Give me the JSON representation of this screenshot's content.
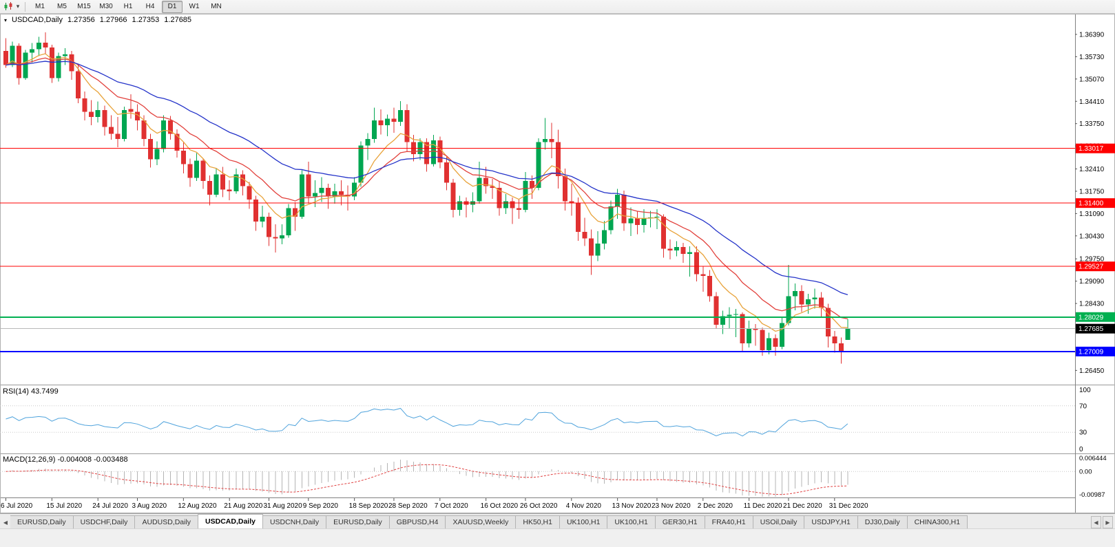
{
  "toolbar": {
    "caret": "▾",
    "timeframes": [
      {
        "label": "M1",
        "active": false
      },
      {
        "label": "M5",
        "active": false
      },
      {
        "label": "M15",
        "active": false
      },
      {
        "label": "M30",
        "active": false
      },
      {
        "label": "H1",
        "active": false
      },
      {
        "label": "H4",
        "active": false
      },
      {
        "label": "D1",
        "active": true
      },
      {
        "label": "W1",
        "active": false
      },
      {
        "label": "MN",
        "active": false
      }
    ]
  },
  "chart": {
    "header": {
      "marker": "▾",
      "symbol": "USDCAD,Daily",
      "open": "1.27356",
      "high": "1.27966",
      "low": "1.27353",
      "close": "1.27685"
    }
  },
  "chart_data": {
    "type": "candlestick",
    "symbol": "USDCAD",
    "timeframe": "Daily",
    "up_color": "#00A651",
    "down_color": "#E03131",
    "price_pane": {
      "ylim": [
        1.2605,
        1.37
      ],
      "axis_ticks": [
        "1.36390",
        "1.35730",
        "1.35070",
        "1.34410",
        "1.33750",
        "1.33090",
        "1.32410",
        "1.31750",
        "1.31090",
        "1.30430",
        "1.29750",
        "1.29090",
        "1.28430",
        "1.26450"
      ],
      "hlines": [
        {
          "value": 1.33017,
          "label": "1.33017",
          "color": "#FF0000",
          "width": 1
        },
        {
          "value": 1.314,
          "label": "1.31400",
          "color": "#FF0000",
          "width": 1
        },
        {
          "value": 1.29527,
          "label": "1.29527",
          "color": "#FF0000",
          "width": 1
        },
        {
          "value": 1.28029,
          "label": "1.28029",
          "color": "#00B050",
          "width": 2
        },
        {
          "value": 1.27009,
          "label": "1.27009",
          "color": "#0000FF",
          "width": 2
        }
      ],
      "current_price": {
        "value": 1.27685,
        "label": "1.27685",
        "line_color": "#B8B8B8",
        "box_color": "#000000"
      },
      "ma": [
        {
          "period": 8,
          "color": "#E8A33B"
        },
        {
          "period": 16,
          "color": "#E2413C"
        },
        {
          "period": 34,
          "color": "#2433C9"
        }
      ],
      "candles": [
        [
          1.359,
          1.3628,
          1.354,
          1.3548
        ],
        [
          1.3548,
          1.3618,
          1.3542,
          1.3605
        ],
        [
          1.3605,
          1.3612,
          1.349,
          1.351
        ],
        [
          1.351,
          1.3593,
          1.3505,
          1.3585
        ],
        [
          1.3585,
          1.3613,
          1.3555,
          1.3595
        ],
        [
          1.3595,
          1.3632,
          1.3575,
          1.3615
        ],
        [
          1.3615,
          1.3645,
          1.358,
          1.36
        ],
        [
          1.36,
          1.3608,
          1.3495,
          1.351
        ],
        [
          1.351,
          1.3585,
          1.35,
          1.3575
        ],
        [
          1.3575,
          1.3598,
          1.3548,
          1.358
        ],
        [
          1.358,
          1.359,
          1.3505,
          1.353
        ],
        [
          1.353,
          1.3548,
          1.3435,
          1.345
        ],
        [
          1.345,
          1.347,
          1.3385,
          1.341
        ],
        [
          1.341,
          1.3445,
          1.337,
          1.3395
        ],
        [
          1.3395,
          1.344,
          1.3378,
          1.3415
        ],
        [
          1.3415,
          1.3428,
          1.334,
          1.3365
        ],
        [
          1.3365,
          1.34,
          1.3328,
          1.3345
        ],
        [
          1.3345,
          1.3395,
          1.3305,
          1.333
        ],
        [
          1.333,
          1.3425,
          1.3322,
          1.3415
        ],
        [
          1.3418,
          1.3462,
          1.339,
          1.341
        ],
        [
          1.341,
          1.3432,
          1.3355,
          1.3385
        ],
        [
          1.3385,
          1.34,
          1.3308,
          1.333
        ],
        [
          1.333,
          1.3345,
          1.3245,
          1.327
        ],
        [
          1.327,
          1.3322,
          1.3252,
          1.33
        ],
        [
          1.33,
          1.34,
          1.329,
          1.3385
        ],
        [
          1.3385,
          1.3398,
          1.3328,
          1.3345
        ],
        [
          1.3345,
          1.3358,
          1.3275,
          1.3295
        ],
        [
          1.3295,
          1.332,
          1.3228,
          1.3255
        ],
        [
          1.3255,
          1.3272,
          1.3188,
          1.3215
        ],
        [
          1.3215,
          1.3288,
          1.3205,
          1.3265
        ],
        [
          1.3265,
          1.3272,
          1.3182,
          1.3205
        ],
        [
          1.3205,
          1.3222,
          1.3133,
          1.3165
        ],
        [
          1.3165,
          1.3242,
          1.3158,
          1.3225
        ],
        [
          1.3225,
          1.3247,
          1.3158,
          1.318
        ],
        [
          1.318,
          1.3207,
          1.3148,
          1.3175
        ],
        [
          1.3175,
          1.3242,
          1.3168,
          1.3225
        ],
        [
          1.3225,
          1.3237,
          1.3163,
          1.319
        ],
        [
          1.319,
          1.3202,
          1.3123,
          1.315
        ],
        [
          1.315,
          1.3162,
          1.3058,
          1.3085
        ],
        [
          1.3085,
          1.3132,
          1.3068,
          1.31
        ],
        [
          1.31,
          1.3112,
          1.3013,
          1.304
        ],
        [
          1.304,
          1.3077,
          1.2994,
          1.3035
        ],
        [
          1.3035,
          1.3077,
          1.3018,
          1.3045
        ],
        [
          1.3045,
          1.3137,
          1.3038,
          1.3125
        ],
        [
          1.3125,
          1.3142,
          1.3058,
          1.31
        ],
        [
          1.31,
          1.3237,
          1.3093,
          1.3225
        ],
        [
          1.3225,
          1.3262,
          1.3138,
          1.316
        ],
        [
          1.316,
          1.3207,
          1.3128,
          1.317
        ],
        [
          1.317,
          1.3217,
          1.3143,
          1.3185
        ],
        [
          1.3185,
          1.3197,
          1.3123,
          1.316
        ],
        [
          1.316,
          1.3197,
          1.3138,
          1.3175
        ],
        [
          1.3175,
          1.3207,
          1.3133,
          1.3165
        ],
        [
          1.3165,
          1.3192,
          1.3118,
          1.316
        ],
        [
          1.316,
          1.3217,
          1.3148,
          1.32
        ],
        [
          1.32,
          1.3322,
          1.3188,
          1.331
        ],
        [
          1.331,
          1.3347,
          1.3268,
          1.333
        ],
        [
          1.333,
          1.3422,
          1.3318,
          1.3385
        ],
        [
          1.3385,
          1.3417,
          1.3343,
          1.337
        ],
        [
          1.337,
          1.3402,
          1.3338,
          1.339
        ],
        [
          1.339,
          1.3422,
          1.3348,
          1.338
        ],
        [
          1.338,
          1.3442,
          1.3368,
          1.3415
        ],
        [
          1.3415,
          1.3432,
          1.3293,
          1.332
        ],
        [
          1.332,
          1.3342,
          1.3263,
          1.3285
        ],
        [
          1.3285,
          1.3332,
          1.3268,
          1.332
        ],
        [
          1.332,
          1.3332,
          1.3233,
          1.3255
        ],
        [
          1.3255,
          1.3342,
          1.3248,
          1.3325
        ],
        [
          1.3325,
          1.3337,
          1.3243,
          1.326
        ],
        [
          1.326,
          1.3277,
          1.3178,
          1.32
        ],
        [
          1.32,
          1.3212,
          1.3098,
          1.312
        ],
        [
          1.312,
          1.3162,
          1.3103,
          1.3145
        ],
        [
          1.3145,
          1.3157,
          1.3098,
          1.3135
        ],
        [
          1.3135,
          1.3172,
          1.3113,
          1.3145
        ],
        [
          1.3145,
          1.3262,
          1.3138,
          1.3215
        ],
        [
          1.3215,
          1.3247,
          1.3168,
          1.319
        ],
        [
          1.319,
          1.3212,
          1.3153,
          1.3185
        ],
        [
          1.3185,
          1.3202,
          1.3103,
          1.3125
        ],
        [
          1.3125,
          1.3167,
          1.3108,
          1.3145
        ],
        [
          1.3145,
          1.3157,
          1.3078,
          1.3125
        ],
        [
          1.3125,
          1.3152,
          1.3093,
          1.312
        ],
        [
          1.312,
          1.3232,
          1.3113,
          1.3205
        ],
        [
          1.3205,
          1.3222,
          1.3153,
          1.3185
        ],
        [
          1.3185,
          1.3332,
          1.3178,
          1.332
        ],
        [
          1.332,
          1.3392,
          1.3298,
          1.333
        ],
        [
          1.333,
          1.3377,
          1.3273,
          1.332
        ],
        [
          1.332,
          1.3357,
          1.3183,
          1.322
        ],
        [
          1.322,
          1.3242,
          1.3118,
          1.3145
        ],
        [
          1.3145,
          1.3197,
          1.3103,
          1.314
        ],
        [
          1.314,
          1.3157,
          1.3028,
          1.3055
        ],
        [
          1.3055,
          1.3097,
          1.3013,
          1.3035
        ],
        [
          1.3035,
          1.3062,
          1.2928,
          1.2985
        ],
        [
          1.2985,
          1.3057,
          1.2968,
          1.302
        ],
        [
          1.302,
          1.3087,
          1.3003,
          1.306
        ],
        [
          1.306,
          1.3147,
          1.3048,
          1.313
        ],
        [
          1.313,
          1.3182,
          1.3093,
          1.3165
        ],
        [
          1.3165,
          1.3177,
          1.3058,
          1.308
        ],
        [
          1.308,
          1.3127,
          1.3043,
          1.3095
        ],
        [
          1.3095,
          1.3117,
          1.3048,
          1.3075
        ],
        [
          1.3075,
          1.3122,
          1.3053,
          1.3095
        ],
        [
          1.3095,
          1.3117,
          1.3068,
          1.3098
        ],
        [
          1.3098,
          1.3122,
          1.3063,
          1.31
        ],
        [
          1.31,
          1.3107,
          1.2978,
          1.3005
        ],
        [
          1.3005,
          1.3032,
          1.2973,
          1.3
        ],
        [
          1.3,
          1.3027,
          1.2983,
          1.301
        ],
        [
          1.301,
          1.3022,
          1.2963,
          1.299
        ],
        [
          1.299,
          1.3012,
          1.2923,
          1.2995
        ],
        [
          1.2995,
          1.3012,
          1.2908,
          1.293
        ],
        [
          1.293,
          1.2952,
          1.2878,
          1.2925
        ],
        [
          1.2925,
          1.2942,
          1.2848,
          1.2865
        ],
        [
          1.2865,
          1.2877,
          1.2768,
          1.278
        ],
        [
          1.278,
          1.2822,
          1.2753,
          1.2805
        ],
        [
          1.2805,
          1.2832,
          1.2768,
          1.281
        ],
        [
          1.281,
          1.2827,
          1.2743,
          1.2812
        ],
        [
          1.2812,
          1.2817,
          1.2703,
          1.2725
        ],
        [
          1.2725,
          1.2792,
          1.2713,
          1.277
        ],
        [
          1.277,
          1.2782,
          1.2718,
          1.2765
        ],
        [
          1.2765,
          1.2772,
          1.2688,
          1.2705
        ],
        [
          1.2705,
          1.2757,
          1.2693,
          1.274
        ],
        [
          1.274,
          1.2752,
          1.2688,
          1.2715
        ],
        [
          1.2715,
          1.2802,
          1.2708,
          1.2785
        ],
        [
          1.2785,
          1.2957,
          1.2778,
          1.2865
        ],
        [
          1.2865,
          1.2902,
          1.2823,
          1.288
        ],
        [
          1.288,
          1.2897,
          1.2818,
          1.284
        ],
        [
          1.284,
          1.2872,
          1.2813,
          1.2855
        ],
        [
          1.2855,
          1.2887,
          1.2828,
          1.286
        ],
        [
          1.286,
          1.2877,
          1.2803,
          1.283
        ],
        [
          1.283,
          1.2842,
          1.2713,
          1.2745
        ],
        [
          1.2745,
          1.2762,
          1.2698,
          1.2725
        ],
        [
          1.2725,
          1.2742,
          1.2665,
          1.27
        ],
        [
          1.27356,
          1.27966,
          1.27353,
          1.27685
        ]
      ]
    },
    "rsi_pane": {
      "label": "RSI(14) 43.7499",
      "period": 14,
      "value": "43.7499",
      "levels": [
        100,
        70,
        30,
        0
      ],
      "color": "#4FA3DC",
      "ylim": [
        0,
        100
      ]
    },
    "macd_pane": {
      "label": "MACD(12,26,9) -0.004008 -0.003488",
      "fast": 12,
      "slow": 26,
      "signal_period": 9,
      "macd_value": "-0.004008",
      "signal_value": "-0.003488",
      "axis_labels": [
        "0.006444",
        "0.00",
        "-0.00987"
      ],
      "ylim": [
        -0.0102,
        0.0068
      ],
      "hist_color": "#B4B4B4",
      "signal_color": "#E04040"
    },
    "x_axis": {
      "ticks": [
        [
          0,
          "6 Jul 2020"
        ],
        [
          7,
          "15 Jul 2020"
        ],
        [
          14,
          "24 Jul 2020"
        ],
        [
          20,
          "3 Aug 2020"
        ],
        [
          27,
          "12 Aug 2020"
        ],
        [
          34,
          "21 Aug 2020"
        ],
        [
          40,
          "31 Aug 2020"
        ],
        [
          46,
          "9 Sep 2020"
        ],
        [
          53,
          "18 Sep 2020"
        ],
        [
          59,
          "28 Sep 2020"
        ],
        [
          66,
          "7 Oct 2020"
        ],
        [
          73,
          "16 Oct 2020"
        ],
        [
          79,
          "26 Oct 2020"
        ],
        [
          86,
          "4 Nov 2020"
        ],
        [
          93,
          "13 Nov 2020"
        ],
        [
          99,
          "23 Nov 2020"
        ],
        [
          106,
          "2 Dec 2020"
        ],
        [
          113,
          "11 Dec 2020"
        ],
        [
          119,
          "21 Dec 2020"
        ],
        [
          126,
          "31 Dec 2020"
        ]
      ]
    }
  },
  "tabs": {
    "left_arrow": "◀",
    "nav_left": "◀",
    "nav_right": "▶",
    "items": [
      {
        "label": "EURUSD,Daily",
        "active": false
      },
      {
        "label": "USDCHF,Daily",
        "active": false
      },
      {
        "label": "AUDUSD,Daily",
        "active": false
      },
      {
        "label": "USDCAD,Daily",
        "active": true
      },
      {
        "label": "USDCNH,Daily",
        "active": false
      },
      {
        "label": "EURUSD,Daily",
        "active": false
      },
      {
        "label": "GBPUSD,H4",
        "active": false
      },
      {
        "label": "XAUUSD,Weekly",
        "active": false
      },
      {
        "label": "HK50,H1",
        "active": false
      },
      {
        "label": "UK100,H1",
        "active": false
      },
      {
        "label": "UK100,H1",
        "active": false
      },
      {
        "label": "GER30,H1",
        "active": false
      },
      {
        "label": "FRA40,H1",
        "active": false
      },
      {
        "label": "USOil,Daily",
        "active": false
      },
      {
        "label": "USDJPY,H1",
        "active": false
      },
      {
        "label": "DJ30,Daily",
        "active": false
      },
      {
        "label": "CHINA300,H1",
        "active": false
      }
    ]
  }
}
